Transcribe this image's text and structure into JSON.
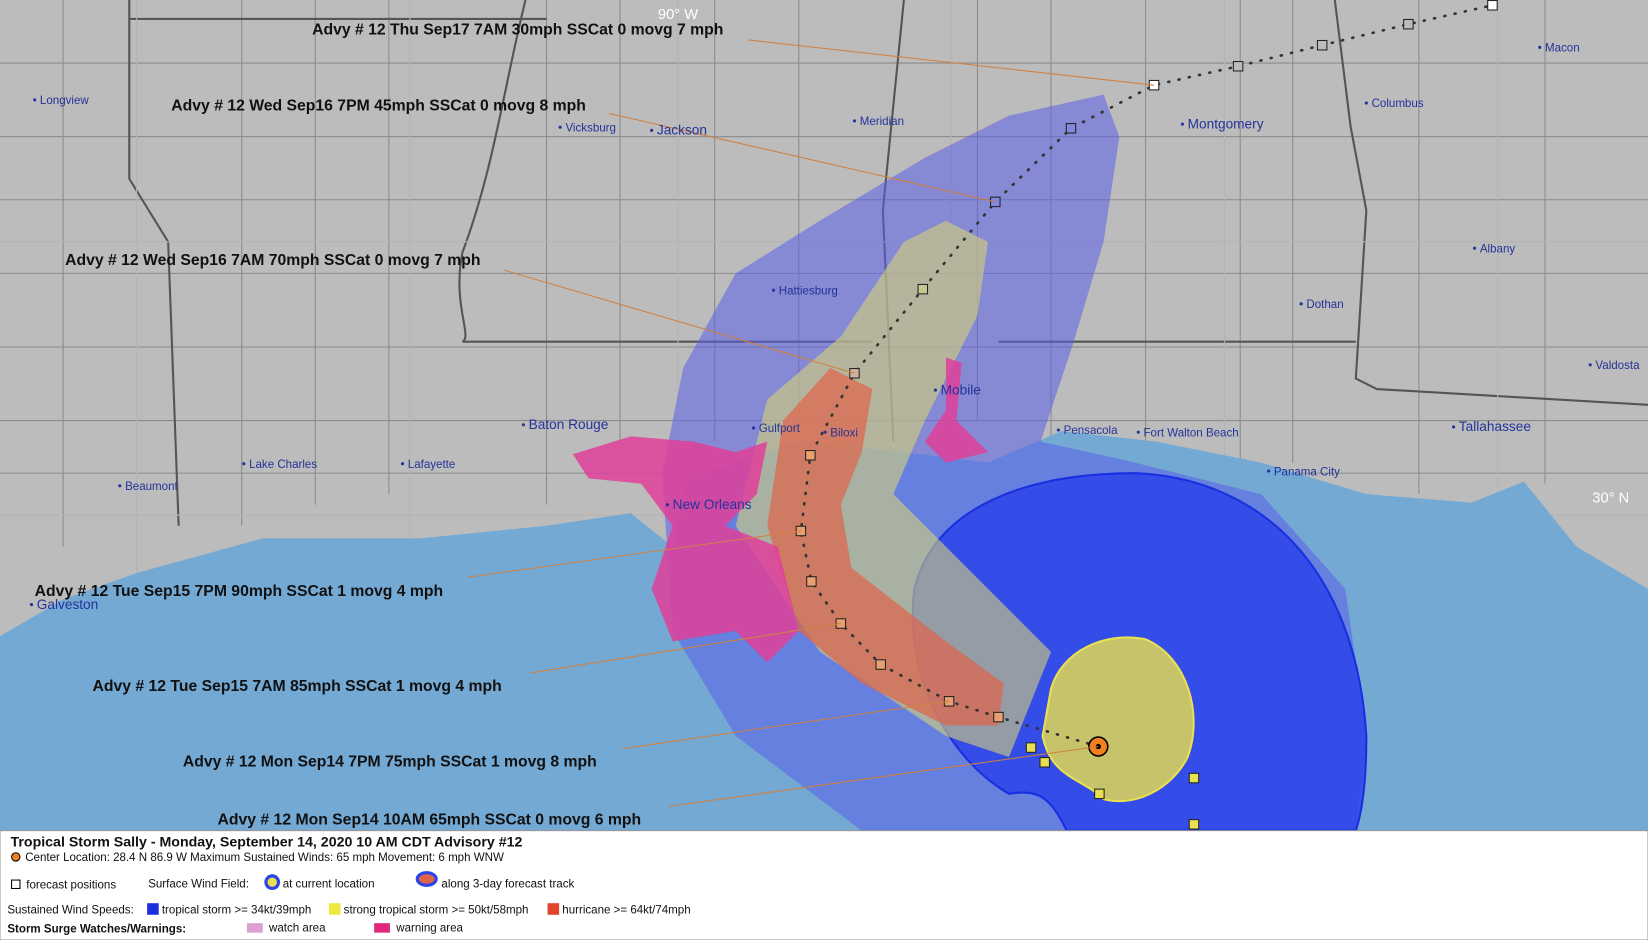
{
  "map": {
    "lon_label": "90° W",
    "lat_label": "30° N",
    "cities": [
      "Longview",
      "Vicksburg",
      "Jackson",
      "Meridian",
      "Montgomery",
      "Columbus",
      "Macon",
      "Albany",
      "Dothan",
      "Valdosta",
      "Tallahassee",
      "Hattiesburg",
      "Mobile",
      "Pensacola",
      "Fort Walton Beach",
      "Panama City",
      "Baton Rouge",
      "Lake Charles",
      "Lafayette",
      "Beaumont",
      "Gulfport",
      "Biloxi",
      "New Orleans",
      "Galveston"
    ],
    "advisories": [
      "Advy # 12 Thu Sep17 7AM  30mph SSCat 0 movg 7 mph",
      "Advy # 12 Wed Sep16 7PM  45mph SSCat 0 movg 8 mph",
      "Advy # 12 Wed Sep16 7AM  70mph SSCat 0 movg 7 mph",
      "Advy # 12 Tue Sep15 7PM  90mph SSCat 1 movg 4 mph",
      "Advy # 12 Tue Sep15 7AM  85mph SSCat 1 movg 4 mph",
      "Advy # 12 Mon Sep14 7PM  75mph SSCat 1 movg 8 mph",
      "Advy # 12 Mon Sep14 10AM  65mph SSCat 0 movg 6 mph"
    ]
  },
  "legend": {
    "title": "Tropical Storm Sally  -  Monday, September 14, 2020  10 AM CDT   Advisory #12",
    "details": "Center Location: 28.4 N  86.9 W   Maximum Sustained Winds: 65 mph   Movement: 6 mph WNW",
    "forecast_positions": "forecast positions",
    "wind_field": "Surface Wind Field:",
    "current_location": "at current location",
    "forecast_track": "along 3-day forecast track",
    "wind_speeds": "Sustained Wind Speeds:",
    "tropical_storm": "tropical storm >= 34kt/39mph",
    "strong_tropical_storm": "strong tropical storm >= 50kt/58mph",
    "hurricane": "hurricane >= 64kt/74mph",
    "surge": "Storm Surge Watches/Warnings:",
    "watch": "watch area",
    "warning": "warning area"
  }
}
